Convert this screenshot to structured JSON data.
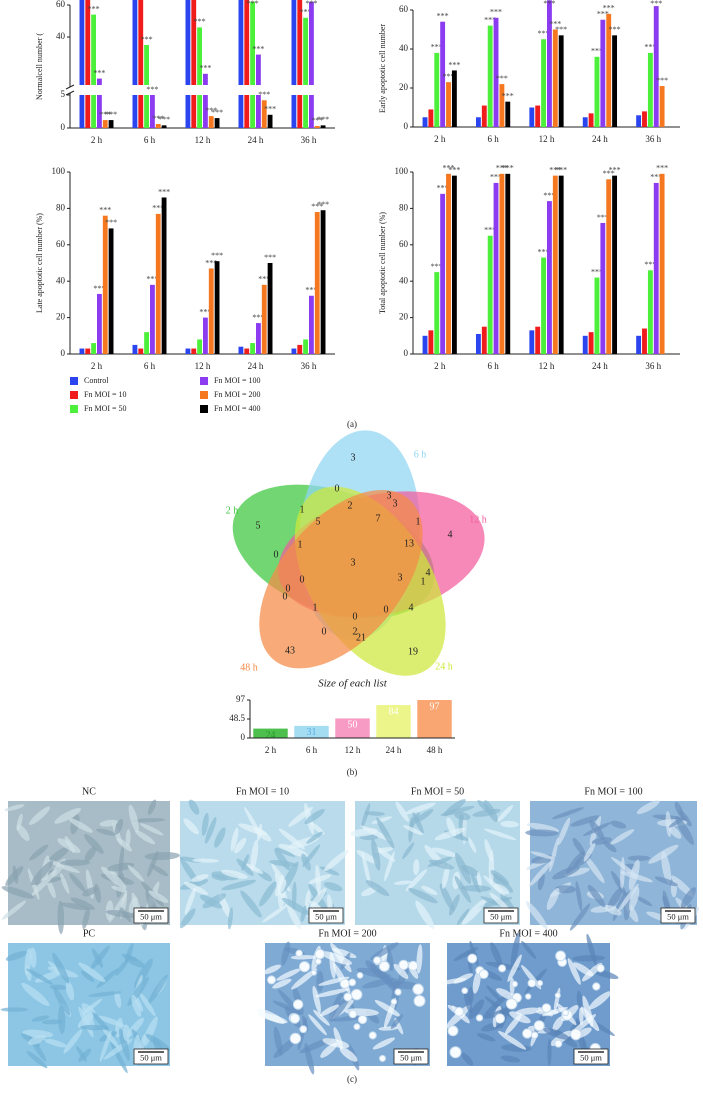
{
  "chart_data": [
    {
      "type": "bar",
      "ylabel": "Normalcell number (",
      "categories": [
        "2 h",
        "6 h",
        "12 h",
        "24 h",
        "36 h"
      ],
      "ylim": [
        0,
        60
      ],
      "ybreak": [
        5,
        10
      ],
      "yticks": [
        0,
        5,
        40,
        60
      ],
      "series": [
        {
          "name": "Control",
          "color": "#2a45f0",
          "values": [
            100,
            100,
            100,
            100,
            100
          ]
        },
        {
          "name": "Fn MOI = 10",
          "color": "#f01c1c",
          "values": [
            100,
            100,
            100,
            100,
            100
          ]
        },
        {
          "name": "Fn MOI = 50",
          "color": "#4cf03a",
          "values": [
            54,
            35,
            46,
            62,
            52
          ],
          "significance": [
            "***",
            "***",
            "***",
            "***",
            "***"
          ]
        },
        {
          "name": "Fn MOI = 100",
          "color": "#8c3cf0",
          "values": [
            14,
            6,
            17,
            29,
            62
          ],
          "significance": [
            "***",
            "***",
            "***",
            "***",
            "***"
          ]
        },
        {
          "name": "Fn MOI = 200",
          "color": "#f57820",
          "values": [
            1.2,
            0.6,
            1.8,
            4.2,
            0.3
          ],
          "significance": [
            "***",
            "***",
            "***",
            "***",
            "***"
          ]
        },
        {
          "name": "Fn MOI = 400",
          "color": "#000000",
          "values": [
            1.2,
            0.4,
            1.5,
            2.0,
            0.4
          ],
          "significance": [
            "***",
            "***",
            "***",
            "***",
            "***"
          ]
        }
      ]
    },
    {
      "type": "bar",
      "ylabel": "Early apoptotic cell number",
      "categories": [
        "2 h",
        "6 h",
        "12 h",
        "24 h",
        "36 h"
      ],
      "ylim": [
        0,
        60
      ],
      "yticks": [
        0,
        20,
        40,
        60
      ],
      "series": [
        {
          "color": "#2a45f0",
          "values": [
            5,
            5,
            10,
            5,
            6
          ]
        },
        {
          "color": "#f01c1c",
          "values": [
            9,
            11,
            11,
            7,
            8
          ]
        },
        {
          "color": "#4cf03a",
          "values": [
            38,
            52,
            45,
            36,
            38
          ],
          "significance": [
            "***",
            "***",
            "***",
            "***",
            "***"
          ]
        },
        {
          "color": "#8c3cf0",
          "values": [
            54,
            56,
            65,
            55,
            62
          ],
          "significance": [
            "***",
            "***",
            "***",
            "***",
            "***"
          ]
        },
        {
          "color": "#f57820",
          "values": [
            23,
            22,
            50,
            58,
            21
          ],
          "significance": [
            "***",
            "***",
            "***",
            "***",
            "***"
          ]
        },
        {
          "color": "#000000",
          "values": [
            29,
            13,
            47,
            47,
            0
          ],
          "significance": [
            "***",
            "***",
            "***",
            "***",
            null
          ]
        }
      ]
    },
    {
      "type": "bar",
      "ylabel": "Late apoptotic cell number (%)",
      "categories": [
        "2 h",
        "6 h",
        "12 h",
        "24 h",
        "36 h"
      ],
      "ylim": [
        0,
        100
      ],
      "yticks": [
        0,
        20,
        40,
        60,
        80,
        100
      ],
      "series": [
        {
          "color": "#2a45f0",
          "values": [
            3,
            5,
            3,
            4,
            3
          ]
        },
        {
          "color": "#f01c1c",
          "values": [
            3,
            3,
            3,
            3,
            5
          ]
        },
        {
          "color": "#4cf03a",
          "values": [
            6,
            12,
            8,
            6,
            8
          ]
        },
        {
          "color": "#8c3cf0",
          "values": [
            33,
            38,
            20,
            17,
            32
          ],
          "significance": [
            "***",
            "***",
            "***",
            "***",
            "***"
          ]
        },
        {
          "color": "#f57820",
          "values": [
            76,
            77,
            47,
            38,
            78
          ],
          "significance": [
            "***",
            "***",
            "***",
            "***",
            "***"
          ]
        },
        {
          "color": "#000000",
          "values": [
            69,
            86,
            51,
            50,
            79
          ],
          "significance": [
            "***",
            "***",
            "***",
            "***",
            "***"
          ]
        }
      ]
    },
    {
      "type": "bar",
      "ylabel": "Total apoptotic cell number (%)",
      "categories": [
        "2 h",
        "6 h",
        "12 h",
        "24 h",
        "36 h"
      ],
      "ylim": [
        0,
        100
      ],
      "yticks": [
        0,
        20,
        40,
        60,
        80,
        100
      ],
      "series": [
        {
          "color": "#2a45f0",
          "values": [
            10,
            11,
            13,
            10,
            10
          ]
        },
        {
          "color": "#f01c1c",
          "values": [
            13,
            15,
            15,
            12,
            14
          ]
        },
        {
          "color": "#4cf03a",
          "values": [
            45,
            65,
            53,
            42,
            46
          ],
          "significance": [
            "***",
            "***",
            "***",
            "***",
            "***"
          ]
        },
        {
          "color": "#8c3cf0",
          "values": [
            88,
            94,
            84,
            72,
            94
          ],
          "significance": [
            "***",
            "***",
            "***",
            "***",
            "***"
          ]
        },
        {
          "color": "#f57820",
          "values": [
            99,
            99,
            98,
            96,
            99
          ],
          "significance": [
            "***",
            "***",
            "***",
            "***",
            "***"
          ]
        },
        {
          "color": "#000000",
          "values": [
            98,
            99,
            98,
            98,
            0
          ],
          "significance": [
            "***",
            "***",
            "***",
            "***",
            null
          ]
        }
      ]
    },
    {
      "type": "bar",
      "title": "Size of each list",
      "categories": [
        "2 h",
        "6 h",
        "12 h",
        "24 h",
        "48 h"
      ],
      "values": [
        24,
        31,
        50,
        84,
        97
      ],
      "colors": [
        "#4cbf4c",
        "#a4dcf2",
        "#f79ac4",
        "#ecf58a",
        "#f9a673"
      ],
      "label_colors": [
        "#2a9a2a",
        "#5ab0e0",
        "#ffffff",
        "#ffffff",
        "#ffffff"
      ],
      "ylim": [
        0,
        97
      ],
      "yticks": [
        0,
        48.5,
        97
      ]
    }
  ],
  "panel_labels": [
    "(a)",
    "(b)",
    "(c)"
  ],
  "venn": {
    "sets": [
      {
        "label": "2 h",
        "color": "#3cc83c"
      },
      {
        "label": "6 h",
        "color": "#8fd6f2"
      },
      {
        "label": "12 h",
        "color": "#f25c9c"
      },
      {
        "label": "24 h",
        "color": "#cfe83a"
      },
      {
        "label": "48 h",
        "color": "#f58a45"
      }
    ],
    "regions": [
      3,
      0,
      2,
      3,
      3,
      1,
      5,
      7,
      1,
      5,
      4,
      13,
      1,
      0,
      3,
      3,
      4,
      1,
      0,
      0,
      0,
      1,
      4,
      0,
      0,
      0,
      2,
      21,
      43,
      19
    ]
  },
  "micrographs": {
    "panels": [
      "NC",
      "Fn MOI = 10",
      "Fn MOI = 50",
      "Fn MOI = 100",
      "PC",
      "Fn MOI = 200",
      "Fn MOI = 400"
    ],
    "scale_bar": "50 μm"
  }
}
